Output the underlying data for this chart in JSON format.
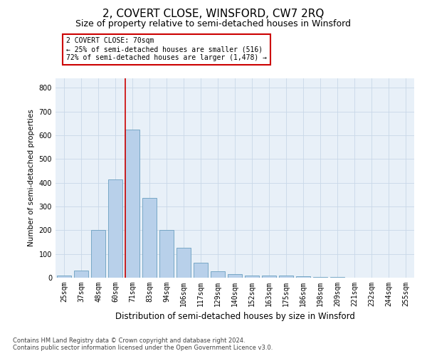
{
  "title": "2, COVERT CLOSE, WINSFORD, CW7 2RQ",
  "subtitle": "Size of property relative to semi-detached houses in Winsford",
  "xlabel": "Distribution of semi-detached houses by size in Winsford",
  "ylabel": "Number of semi-detached properties",
  "footnote1": "Contains HM Land Registry data © Crown copyright and database right 2024.",
  "footnote2": "Contains public sector information licensed under the Open Government Licence v3.0.",
  "annotation_title": "2 COVERT CLOSE: 70sqm",
  "annotation_line1": "← 25% of semi-detached houses are smaller (516)",
  "annotation_line2": "72% of semi-detached houses are larger (1,478) →",
  "categories": [
    "25sqm",
    "37sqm",
    "48sqm",
    "60sqm",
    "71sqm",
    "83sqm",
    "94sqm",
    "106sqm",
    "117sqm",
    "129sqm",
    "140sqm",
    "152sqm",
    "163sqm",
    "175sqm",
    "186sqm",
    "198sqm",
    "209sqm",
    "221sqm",
    "232sqm",
    "244sqm",
    "255sqm"
  ],
  "values": [
    8,
    30,
    200,
    415,
    625,
    335,
    200,
    125,
    63,
    28,
    15,
    10,
    10,
    10,
    5,
    3,
    2,
    0,
    0,
    0,
    0
  ],
  "bar_color": "#b8d0ea",
  "bar_edgecolor": "#6a9fc0",
  "vline_color": "#cc0000",
  "vline_bar_index": 4,
  "ylim": [
    0,
    840
  ],
  "yticks": [
    0,
    100,
    200,
    300,
    400,
    500,
    600,
    700,
    800
  ],
  "grid_color": "#c8d8e8",
  "bg_color": "#e8f0f8",
  "annotation_box_color": "#cc0000",
  "title_fontsize": 11,
  "subtitle_fontsize": 9,
  "xlabel_fontsize": 8.5,
  "ylabel_fontsize": 7.5,
  "tick_fontsize": 7,
  "annotation_fontsize": 7,
  "footnote_fontsize": 6
}
